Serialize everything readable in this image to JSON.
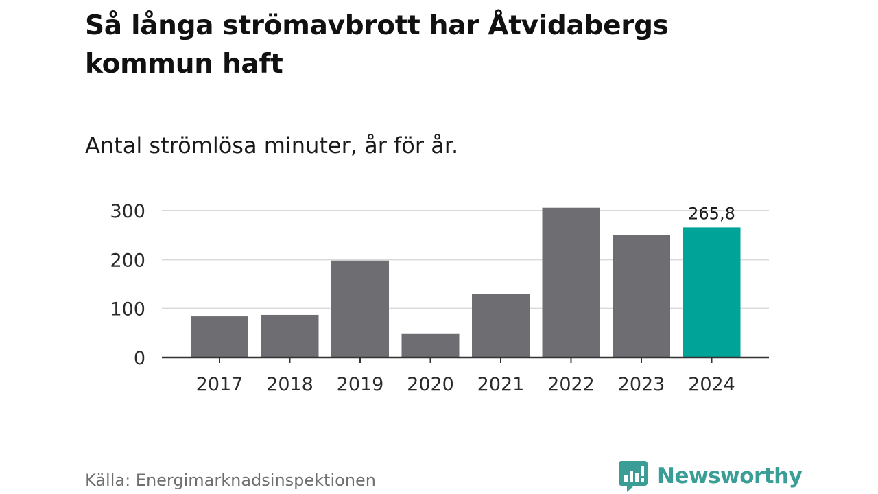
{
  "title": "Så långa strömavbrott har Åtvidabergs kommun haft",
  "subtitle": "Antal strömlösa minuter, år för år.",
  "source": "Källa: Energimarknadsinspektionen",
  "brand": {
    "name": "Newsworthy",
    "icon": "newsworthy-logo-icon"
  },
  "colors": {
    "bar": "#6e6d72",
    "highlight": "#00a398",
    "grid": "#d9d9d9",
    "axis": "#333333"
  },
  "chart_data": {
    "type": "bar",
    "categories": [
      "2017",
      "2018",
      "2019",
      "2020",
      "2021",
      "2022",
      "2023",
      "2024"
    ],
    "values": [
      84,
      87,
      198,
      48,
      130,
      306,
      250,
      265.8
    ],
    "highlight_index": 7,
    "data_labels": [
      {
        "index": 7,
        "text": "265,8"
      }
    ],
    "yticks": [
      0,
      100,
      200,
      300
    ],
    "ylim": [
      0,
      320
    ],
    "xlabel": "",
    "ylabel": "",
    "grid": true
  }
}
